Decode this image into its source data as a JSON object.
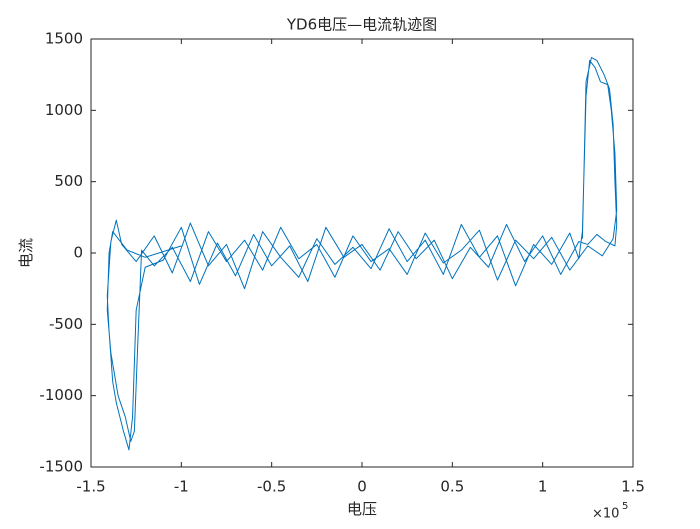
{
  "chart_data": {
    "type": "line",
    "title": "YD6电压—电流轨迹图",
    "x_label": "电压",
    "y_label": "电流",
    "x_scale": {
      "base": "×10",
      "exponent": "5"
    },
    "xlim": [
      -1.5,
      1.5
    ],
    "xticks": [
      -1.5,
      -1,
      -0.5,
      0,
      0.5,
      1,
      1.5
    ],
    "ylim": [
      -1500,
      1500
    ],
    "yticks": [
      -1500,
      -1000,
      -500,
      0,
      500,
      1000,
      1500
    ],
    "grid": false,
    "x": [
      1.22,
      1.24,
      1.27,
      1.3,
      1.34,
      1.37,
      1.39,
      1.4,
      1.41,
      1.4,
      1.35,
      1.3,
      1.25,
      1.2,
      1.1,
      1.0,
      0.9,
      0.8,
      0.7,
      0.6,
      0.5,
      0.4,
      0.3,
      0.2,
      0.1,
      0,
      -0.1,
      -0.2,
      -0.3,
      -0.4,
      -0.5,
      -0.6,
      -0.7,
      -0.8,
      -0.9,
      -1.0,
      -1.1,
      -1.2,
      -1.25,
      -1.27,
      -1.29,
      -1.32,
      -1.36,
      -1.38,
      -1.4,
      -1.41,
      -1.39,
      -1.36,
      -1.33,
      -1.25,
      -1.15,
      -1.05,
      -0.95,
      -0.85,
      -0.75,
      -0.65,
      -0.55,
      -0.45,
      -0.35,
      -0.25,
      -0.15,
      -0.05,
      0.05,
      0.15,
      0.25,
      0.35,
      0.45,
      0.55,
      0.65,
      0.75,
      0.85,
      0.95,
      1.05,
      1.15,
      1.2,
      1.22,
      1.24,
      1.26,
      1.29,
      1.32,
      1.36,
      1.38,
      1.4,
      1.41,
      1.39,
      1.33,
      1.25,
      1.15,
      1.05,
      0.95,
      0.85,
      0.75,
      0.65,
      0.55,
      0.45,
      0.35,
      0.25,
      0.15,
      0.05,
      -0.05,
      -0.15,
      -0.25,
      -0.35,
      -0.45,
      -0.55,
      -0.65,
      -0.75,
      -0.85,
      -0.95,
      -1.05,
      -1.15,
      -1.22,
      -1.24,
      -1.26,
      -1.28,
      -1.31,
      -1.35,
      -1.39,
      -1.41,
      -1.4,
      -1.38,
      -1.3,
      -1.2,
      -1.0
    ],
    "series": [
      {
        "color": "#0072BD",
        "values": [
          100,
          1200,
          1370,
          1350,
          1250,
          1150,
          900,
          500,
          200,
          50,
          80,
          130,
          60,
          80,
          -150,
          120,
          -60,
          200,
          -100,
          40,
          -180,
          90,
          -40,
          150,
          -120,
          60,
          -30,
          180,
          -200,
          50,
          -90,
          130,
          -160,
          70,
          -220,
          180,
          -50,
          -100,
          -400,
          -1150,
          -1380,
          -1250,
          -1050,
          -900,
          -550,
          -300,
          80,
          230,
          60,
          -60,
          120,
          -140,
          210,
          -90,
          60,
          -250,
          150,
          -30,
          -170,
          100,
          -80,
          40,
          -110,
          170,
          -60,
          90,
          -150,
          200,
          -30,
          120,
          -230,
          60,
          -80,
          140,
          -40,
          150,
          1100,
          1350,
          1300,
          1200,
          1180,
          1000,
          700,
          300,
          100,
          -20,
          50,
          -120,
          110,
          -40,
          90,
          -190,
          160,
          20,
          -70,
          140,
          -150,
          30,
          -60,
          120,
          -170,
          60,
          -40,
          180,
          -120,
          90,
          -60,
          150,
          -200,
          40,
          -90,
          20,
          -600,
          -1250,
          -1320,
          -1150,
          -1000,
          -700,
          -400,
          0,
          150,
          20,
          -30,
          50
        ]
      }
    ]
  }
}
